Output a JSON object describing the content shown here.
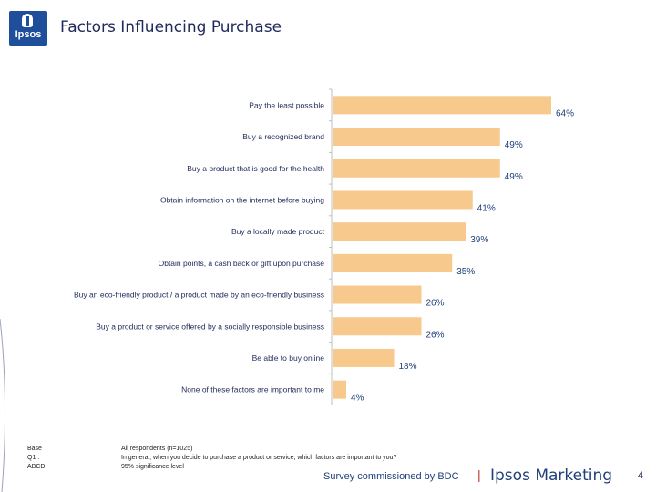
{
  "header": {
    "logo_text": "Ipsos",
    "title": "Factors Influencing Purchase"
  },
  "chart_data": {
    "type": "bar",
    "orientation": "horizontal",
    "categories": [
      "Pay the least possible",
      "Buy a recognized brand",
      "Buy a product that is good for the health",
      "Obtain information on the internet before buying",
      "Buy a locally made product",
      "Obtain points, a cash back or gift upon purchase",
      "Buy an eco-friendly product / a product made by an eco-friendly business",
      "Buy a product or service offered by a socially responsible business",
      "Be able to buy online",
      "None of these factors are important to me"
    ],
    "values": [
      64,
      49,
      49,
      41,
      39,
      35,
      26,
      26,
      18,
      4
    ],
    "value_labels": [
      "64%",
      "49%",
      "49%",
      "41%",
      "39%",
      "35%",
      "26%",
      "26%",
      "18%",
      "4%"
    ],
    "unit": "%",
    "bar_color": "#f7c98d",
    "value_label_color": "#1f3f7a",
    "grid": false,
    "legend": "none"
  },
  "footer": {
    "labels": [
      "Base",
      "Q1 :",
      "ABCD:"
    ],
    "values": [
      "All respondents (n=1025)",
      "In general, when you decide to purchase a product or service, which factors are important to you?",
      "95% significance level"
    ],
    "commissioned": "Survey commissioned by BDC",
    "separator": "|",
    "brand": "Ipsos Marketing",
    "page_number": "4"
  }
}
